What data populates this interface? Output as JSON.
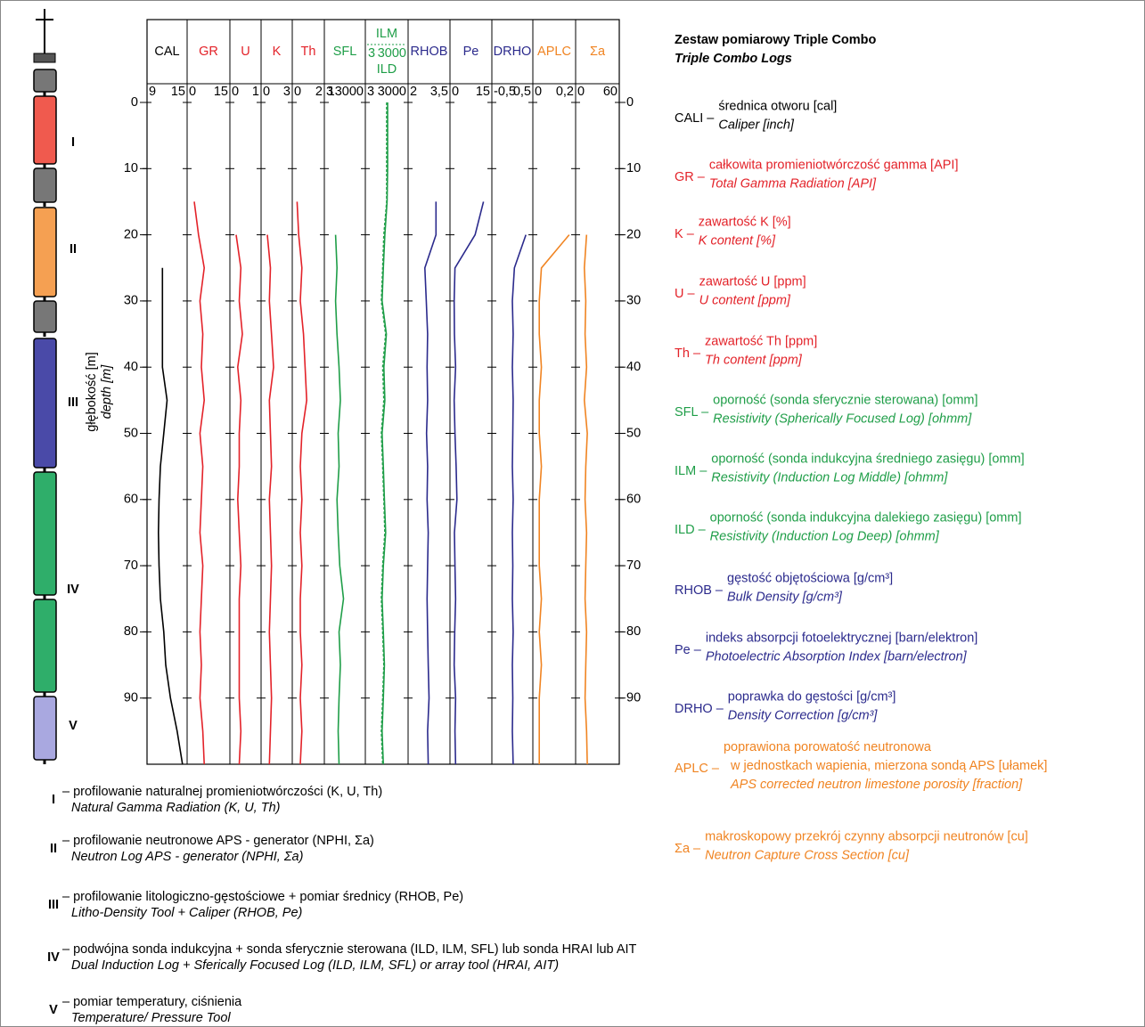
{
  "title": [
    "Zestaw pomiarowy Triple Combo",
    "Triple Combo Logs"
  ],
  "chart_data": {
    "type": "well-log",
    "ylabel": [
      "głębokość [m]",
      "depth [m]"
    ],
    "depths": [
      0,
      5,
      10,
      15,
      20,
      25,
      30,
      35,
      40,
      45,
      50,
      55,
      60,
      65,
      70,
      75,
      80,
      85,
      90,
      95,
      100
    ],
    "ylim": [
      0,
      100
    ],
    "yticks": [
      0,
      10,
      20,
      30,
      40,
      50,
      60,
      70,
      80,
      90
    ],
    "grid": true,
    "tracks": [
      {
        "name": "CAL",
        "color": "#000000",
        "xlim": [
          9,
          15
        ],
        "xticks": [
          9,
          15
        ],
        "series": [
          {
            "name": "CAL",
            "values": [
              null,
              null,
              null,
              null,
              null,
              11.3,
              11.3,
              11.3,
              11.3,
              12,
              11.5,
              11,
              10.8,
              10.7,
              10.8,
              11,
              11.5,
              11.8,
              12.5,
              13.5,
              14.3
            ]
          }
        ]
      },
      {
        "name": "GR",
        "color": "#e32229",
        "xlim": [
          0,
          15
        ],
        "xticks": [
          0,
          15
        ],
        "series": [
          {
            "name": "GR",
            "values": [
              null,
              null,
              null,
              2.5,
              4,
              6,
              4.5,
              5.5,
              5,
              6,
              4.5,
              5.5,
              5,
              4.5,
              5.5,
              5,
              4.5,
              5,
              4.5,
              5.5,
              6
            ]
          }
        ]
      },
      {
        "name": "U",
        "color": "#e32229",
        "xlim": [
          0,
          1
        ],
        "xticks": [
          0,
          1
        ],
        "series": [
          {
            "name": "U",
            "values": [
              null,
              null,
              null,
              null,
              0.2,
              0.35,
              0.3,
              0.4,
              0.25,
              0.35,
              0.3,
              0.3,
              0.25,
              0.3,
              0.35,
              0.3,
              0.3,
              0.3,
              0.3,
              0.35,
              0.3
            ]
          }
        ]
      },
      {
        "name": "K",
        "color": "#e32229",
        "xlim": [
          0,
          3
        ],
        "xticks": [
          0,
          3
        ],
        "series": [
          {
            "name": "K",
            "values": [
              null,
              null,
              null,
              null,
              0.6,
              0.9,
              0.8,
              1,
              1.2,
              0.8,
              0.9,
              1,
              0.8,
              0.9,
              1,
              0.9,
              0.8,
              0.9,
              1,
              0.9,
              0.8
            ]
          }
        ]
      },
      {
        "name": "Th",
        "color": "#e32229",
        "xlim": [
          0,
          2
        ],
        "xticks": [
          0,
          2
        ],
        "series": [
          {
            "name": "Th",
            "values": [
              null,
              null,
              null,
              0.3,
              0.4,
              0.6,
              0.5,
              0.7,
              0.8,
              0.9,
              0.6,
              0.5,
              0.6,
              0.5,
              0.6,
              0.5,
              0.5,
              0.6,
              0.5,
              0.6,
              0.5
            ]
          }
        ]
      },
      {
        "name": "SFL",
        "color": "#1f9e48",
        "log": true,
        "xlim": [
          3,
          13000
        ],
        "xticks": [
          3,
          13000
        ],
        "series": [
          {
            "name": "SFL",
            "values": [
              null,
              null,
              null,
              null,
              30,
              40,
              30,
              40,
              60,
              80,
              50,
              60,
              40,
              50,
              70,
              150,
              60,
              80,
              60,
              50,
              60
            ]
          }
        ]
      },
      {
        "name": "ILM",
        "name2": "ILD",
        "color": "#1f9e48",
        "log": true,
        "xlim": [
          3,
          3000
        ],
        "xticks": [
          3,
          3000
        ],
        "series": [
          {
            "name": "ILM",
            "dash": true,
            "values": [
              95,
              95,
              95,
              95,
              60,
              50,
              40,
              80,
              50,
              60,
              40,
              50,
              60,
              70,
              50,
              40,
              50,
              60,
              50,
              40,
              50
            ]
          },
          {
            "name": "ILD",
            "values": [
              110,
              110,
              110,
              100,
              70,
              55,
              45,
              90,
              60,
              70,
              45,
              55,
              65,
              80,
              55,
              45,
              55,
              65,
              55,
              45,
              55
            ]
          }
        ]
      },
      {
        "name": "RHOB",
        "color": "#2b2a8c",
        "xlim": [
          2,
          3.5
        ],
        "xticks": [
          2,
          {
            "value": 3.5,
            "label": "3,5"
          }
        ],
        "series": [
          {
            "name": "RHOB",
            "values": [
              null,
              null,
              null,
              3.0,
              3.0,
              2.6,
              2.65,
              2.7,
              2.68,
              2.7,
              2.66,
              2.7,
              2.68,
              2.72,
              2.7,
              2.68,
              2.7,
              2.72,
              2.75,
              2.7,
              2.72
            ]
          }
        ]
      },
      {
        "name": "Pe",
        "color": "#2b2a8c",
        "xlim": [
          0,
          15
        ],
        "xticks": [
          0,
          15
        ],
        "series": [
          {
            "name": "Pe",
            "values": [
              null,
              null,
              null,
              12,
              9,
              1.8,
              1.5,
              1.6,
              2,
              1.5,
              1.8,
              2.2,
              2.5,
              1.6,
              1.8,
              2,
              1.7,
              1.5,
              2,
              1.8,
              2
            ]
          }
        ]
      },
      {
        "name": "DRHO",
        "color": "#2b2a8c",
        "xlim": [
          -0.5,
          0.5
        ],
        "xticks": [
          {
            "value": -0.5,
            "label": "-0,5"
          },
          {
            "value": 0.5,
            "label": "0,5"
          }
        ],
        "series": [
          {
            "name": "DRHO",
            "values": [
              null,
              null,
              null,
              null,
              0.33,
              0.05,
              0,
              0.02,
              0,
              0.02,
              0.01,
              0,
              0.02,
              0,
              0.01,
              0,
              0.02,
              0,
              0.01,
              0,
              0.02
            ]
          }
        ]
      },
      {
        "name": "APLC",
        "color": "#f08422",
        "xlim": [
          0,
          0.2
        ],
        "xticks": [
          0,
          {
            "value": 0.2,
            "label": "0,2"
          }
        ],
        "series": [
          {
            "name": "APLC",
            "values": [
              null,
              null,
              null,
              null,
              0.17,
              0.04,
              0.03,
              0.03,
              0.04,
              0.03,
              0.03,
              0.04,
              0.03,
              0.03,
              0.03,
              0.04,
              0.03,
              0.04,
              0.03,
              0.03,
              0.03
            ]
          }
        ]
      },
      {
        "name": "Σa",
        "color": "#f08422",
        "xlim": [
          0,
          60
        ],
        "xticks": [
          0,
          60
        ],
        "series": [
          {
            "name": "Σa",
            "values": [
              null,
              null,
              null,
              null,
              15,
              12,
              14,
              13,
              15,
              12,
              16,
              14,
              13,
              15,
              14,
              13,
              15,
              14,
              13,
              15,
              16
            ]
          }
        ]
      }
    ]
  },
  "legend": [
    {
      "abbr": "CALI –",
      "color": "#000000",
      "desc": [
        "średnica otworu [cal]"
      ],
      "desc_en": [
        "Caliper [inch]"
      ]
    },
    {
      "abbr": "GR –",
      "color": "#e32229",
      "desc": [
        "całkowita promieniotwórczość gamma [API]"
      ],
      "desc_en": [
        "Total Gamma Radiation [API]"
      ]
    },
    {
      "abbr": "K –",
      "color": "#e32229",
      "desc": [
        "zawartość K [%]"
      ],
      "desc_en": [
        "K content [%]"
      ]
    },
    {
      "abbr": "U –",
      "color": "#e32229",
      "desc": [
        "zawartość U [ppm]"
      ],
      "desc_en": [
        "U content [ppm]"
      ]
    },
    {
      "abbr": "Th –",
      "color": "#e32229",
      "desc": [
        "zawartość Th [ppm]"
      ],
      "desc_en": [
        "Th content [ppm]"
      ]
    },
    {
      "abbr": "SFL –",
      "color": "#1f9e48",
      "desc": [
        "oporność (sonda sferycznie sterowana) [omm]"
      ],
      "desc_en": [
        "Resistivity (Spherically Focused Log) [ohmm]"
      ]
    },
    {
      "abbr": "ILM –",
      "color": "#1f9e48",
      "desc": [
        "oporność (sonda indukcyjna średniego zasięgu) [omm]"
      ],
      "desc_en": [
        "Resistivity (Induction Log Middle) [ohmm]"
      ]
    },
    {
      "abbr": "ILD –",
      "color": "#1f9e48",
      "desc": [
        "oporność (sonda indukcyjna dalekiego zasięgu) [omm]"
      ],
      "desc_en": [
        "Resistivity (Induction Log Deep) [ohmm]"
      ]
    },
    {
      "abbr": "RHOB –",
      "color": "#2b2a8c",
      "desc": [
        "gęstość objętościowa [g/cm³]"
      ],
      "desc_en": [
        "Bulk Density [g/cm³]"
      ]
    },
    {
      "abbr": "Pe –",
      "color": "#2b2a8c",
      "desc": [
        "indeks absorpcji fotoelektrycznej [barn/elektron]"
      ],
      "desc_en": [
        "Photoelectric Absorption Index [barn/electron]"
      ]
    },
    {
      "abbr": "DRHO –",
      "color": "#2b2a8c",
      "desc": [
        "poprawka do gęstości [g/cm³]"
      ],
      "desc_en": [
        "Density Correction [g/cm³]"
      ]
    },
    {
      "abbr": "APLC –",
      "color": "#f08422",
      "desc": [
        "poprawiona porowatość neutronowa",
        "w jednostkach wapienia, mierzona sondą APS [ułamek]"
      ],
      "desc_en": [
        "APS corrected neutron limestone porosity [fraction]"
      ]
    },
    {
      "abbr": "Σa –",
      "color": "#f08422",
      "desc": [
        "makroskopowy przekrój czynny absorpcji neutronów [cu]"
      ],
      "desc_en": [
        "Neutron Capture Cross Section [cu]"
      ]
    }
  ],
  "tools": [
    {
      "numeral": "I",
      "desc": "– profilowanie naturalnej promieniotwórczości (K, U, Th)",
      "desc_en": "Natural Gamma Radiation (K, U, Th)"
    },
    {
      "numeral": "II",
      "desc": "– profilowanie neutronowe APS - generator (NPHI, Σa)",
      "desc_en": "Neutron Log APS - generator (NPHI, Σa)"
    },
    {
      "numeral": "III",
      "desc": "– profilowanie litologiczno-gęstościowe + pomiar średnicy (RHOB, Pe)",
      "desc_en": "Litho-Density Tool + Caliper (RHOB, Pe)"
    },
    {
      "numeral": "IV",
      "desc": "– podwójna sonda indukcyjna + sonda sferycznie sterowana (ILD, ILM, SFL) lub sonda HRAI lub AIT",
      "desc_en": "Dual Induction Log + Sferically Focused Log (ILD, ILM, SFL) or array tool (HRAI, AIT)"
    },
    {
      "numeral": "V",
      "desc": "– pomiar temperatury, ciśnienia",
      "desc_en": "Temperature/ Pressure Tool"
    }
  ]
}
